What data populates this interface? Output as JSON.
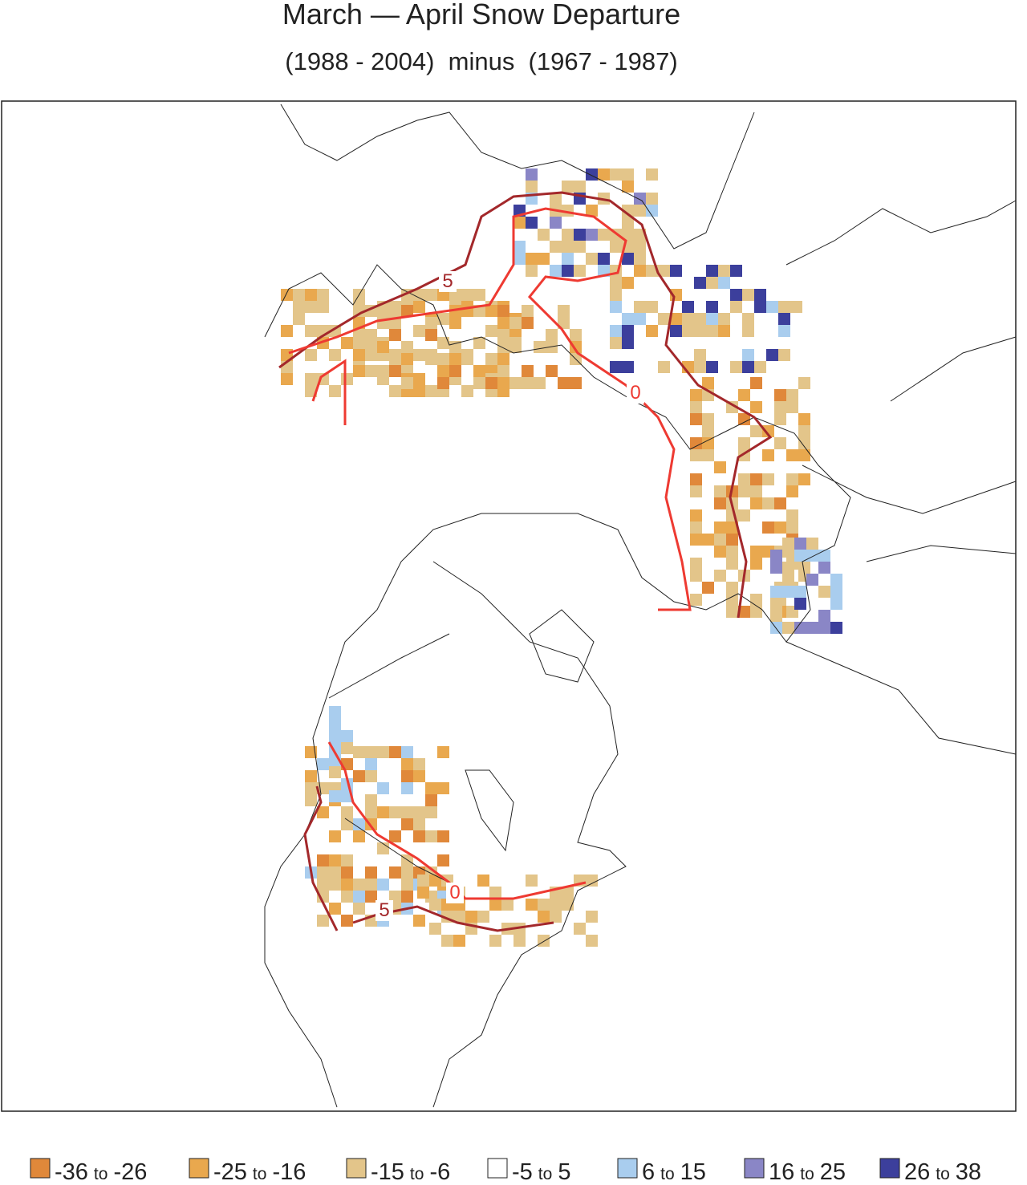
{
  "header": {
    "title": "March — April Snow Departure",
    "subtitle": "(1988 - 2004)  minus  (1967 - 1987)"
  },
  "contours": [
    {
      "level": 5,
      "color": "#a3282b"
    },
    {
      "level": 0,
      "color": "#ee3a32"
    }
  ],
  "legend": {
    "joiner": "to",
    "items": [
      {
        "low": -36,
        "high": -26,
        "color": "#e0883a"
      },
      {
        "low": -25,
        "high": -16,
        "color": "#e9a84e"
      },
      {
        "low": -15,
        "high": -6,
        "color": "#e3c58a"
      },
      {
        "low": -5,
        "high": 5,
        "color": "#ffffff"
      },
      {
        "low": 6,
        "high": 15,
        "color": "#a9cdee"
      },
      {
        "low": 16,
        "high": 25,
        "color": "#8a86c6"
      },
      {
        "low": 26,
        "high": 38,
        "color": "#3c3f9c"
      }
    ]
  }
}
